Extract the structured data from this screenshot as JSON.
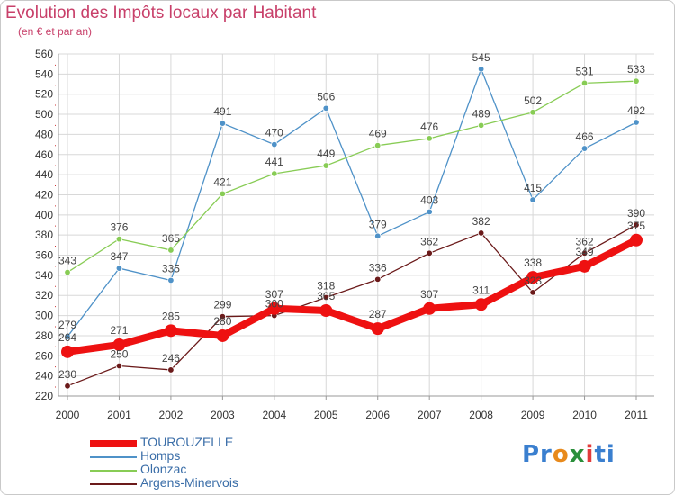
{
  "header": {
    "title": "Evolution des Impôts locaux par Habitant",
    "subtitle": "(en € et par an)"
  },
  "logo": {
    "parts": [
      "Pr",
      "o",
      "x",
      "i",
      "ti"
    ],
    "colors": [
      "#3a7fcf",
      "#e88a1c",
      "#2a8f3a",
      "#e23b3b",
      "#3a7fcf"
    ]
  },
  "chart_data": {
    "type": "line",
    "title": "Evolution des Impôts locaux par Habitant",
    "subtitle": "(en € et par an)",
    "xlabel": "",
    "ylabel": "",
    "ylim": [
      220,
      560
    ],
    "yticks": [
      220,
      240,
      260,
      280,
      300,
      320,
      340,
      360,
      380,
      400,
      420,
      440,
      460,
      480,
      500,
      520,
      540,
      560
    ],
    "categories": [
      "2000",
      "2001",
      "2002",
      "2003",
      "2004",
      "2005",
      "2006",
      "2007",
      "2008",
      "2009",
      "2010",
      "2011"
    ],
    "grid": true,
    "series": [
      {
        "name": "TOUROUZELLE",
        "color": "#ee1111",
        "values": [
          264,
          271,
          285,
          280,
          307,
          305,
          287,
          307,
          311,
          338,
          349,
          375
        ]
      },
      {
        "name": "Homps",
        "color": "#4f92c8",
        "values": [
          279,
          347,
          335,
          491,
          470,
          506,
          379,
          403,
          545,
          415,
          466,
          492
        ]
      },
      {
        "name": "Olonzac",
        "color": "#88cc55",
        "values": [
          343,
          376,
          365,
          421,
          441,
          449,
          469,
          476,
          489,
          502,
          531,
          533
        ]
      },
      {
        "name": "Argens-Minervois",
        "color": "#6b1a1a",
        "values": [
          230,
          250,
          246,
          299,
          300,
          318,
          336,
          362,
          382,
          323,
          362,
          390
        ]
      }
    ]
  }
}
